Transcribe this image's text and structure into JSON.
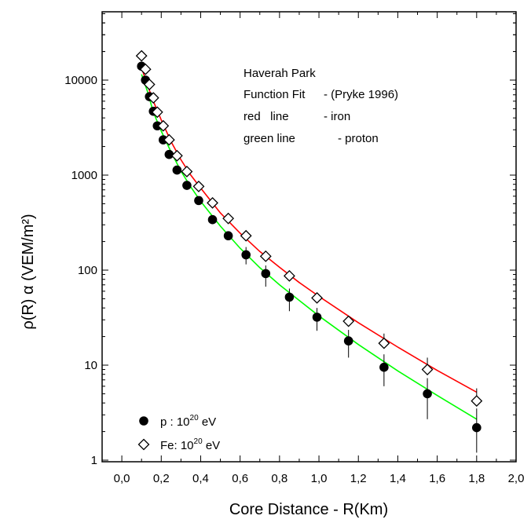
{
  "chart_data": {
    "type": "scatter",
    "xlabel": "Core Distance - R(Km)",
    "ylabel": "ρ(R) α (VEM/m²)",
    "xlim": [
      -0.1,
      2.0
    ],
    "ylim": [
      1,
      60000
    ],
    "y_scale": "log",
    "x_ticks": [
      "0,0",
      "0,2",
      "0,4",
      "0,6",
      "0,8",
      "1,0",
      "1,2",
      "1,4",
      "1,6",
      "1,8",
      "2,0"
    ],
    "y_ticks": [
      "1",
      "10",
      "100",
      "1000",
      "10000"
    ],
    "annotations": [
      "Haverah Park",
      "Function Fit",
      "- (Pryke 1996)",
      "red   line",
      "- iron",
      "green line",
      "- proton"
    ],
    "legend": {
      "placement": "bottom-left",
      "items": [
        {
          "marker": "filled-circle",
          "prefix": "p : 10",
          "sup": "20",
          "suffix": " eV"
        },
        {
          "marker": "open-diamond",
          "prefix": "Fe: 10",
          "sup": "20",
          "suffix": " eV"
        }
      ]
    },
    "series": [
      {
        "marker": "filled-circle",
        "color": "#000000",
        "x": [
          0.1,
          0.12,
          0.14,
          0.16,
          0.18,
          0.21,
          0.24,
          0.28,
          0.33,
          0.39,
          0.46,
          0.54,
          0.63,
          0.73,
          0.85,
          0.99,
          1.15,
          1.33,
          1.55,
          1.8
        ],
        "y": [
          14000,
          10000,
          6700,
          4700,
          3300,
          2350,
          1650,
          1130,
          780,
          540,
          340,
          230,
          145,
          92,
          52,
          32,
          18,
          9.5,
          5,
          2.2
        ],
        "err_up": [
          0,
          0,
          0,
          0,
          0,
          0,
          0,
          0,
          0,
          0,
          0,
          0,
          30,
          20,
          12,
          8,
          5.5,
          3.5,
          2.3,
          1.3
        ],
        "err_down": [
          0,
          0,
          0,
          0,
          0,
          0,
          0,
          0,
          0,
          0,
          0,
          0,
          30,
          25,
          15,
          9,
          6,
          3.5,
          2.3,
          1.0
        ]
      },
      {
        "marker": "open-diamond",
        "color": "#000000",
        "x": [
          0.1,
          0.12,
          0.14,
          0.16,
          0.18,
          0.21,
          0.24,
          0.28,
          0.33,
          0.39,
          0.46,
          0.54,
          0.63,
          0.73,
          0.85,
          0.99,
          1.15,
          1.33,
          1.55,
          1.8
        ],
        "y": [
          18000,
          13000,
          9000,
          6500,
          4600,
          3300,
          2350,
          1600,
          1090,
          760,
          510,
          350,
          230,
          140,
          87,
          51,
          29,
          17,
          9,
          4.2
        ],
        "err_up": [
          0,
          0,
          0,
          0,
          0,
          0,
          0,
          0,
          0,
          0,
          0,
          0,
          0,
          0,
          0,
          0,
          0,
          4.5,
          3.0,
          1.5
        ],
        "err_down": [
          0,
          0,
          0,
          0,
          0,
          0,
          0,
          0,
          0,
          0,
          0,
          0,
          0,
          0,
          0,
          0,
          0,
          0,
          0,
          0
        ]
      },
      {
        "type": "line",
        "color": "#ff0000",
        "x": [
          0.1,
          0.13,
          0.16,
          0.2,
          0.25,
          0.3,
          0.35,
          0.4,
          0.5,
          0.6,
          0.7,
          0.8,
          0.9,
          1.0,
          1.2,
          1.4,
          1.6,
          1.8
        ],
        "y": [
          13500,
          8900,
          6000,
          3800,
          2250,
          1450,
          1000,
          730,
          400,
          245,
          157,
          107,
          74,
          53,
          28,
          15.5,
          8.8,
          5.2
        ]
      },
      {
        "type": "line",
        "color": "#00ff00",
        "x": [
          0.1,
          0.13,
          0.16,
          0.2,
          0.25,
          0.3,
          0.35,
          0.4,
          0.5,
          0.6,
          0.7,
          0.8,
          0.9,
          1.0,
          1.2,
          1.4,
          1.6,
          1.8
        ],
        "y": [
          11500,
          7600,
          4600,
          2900,
          1750,
          1100,
          750,
          530,
          290,
          170,
          106,
          70,
          48,
          33,
          16.5,
          8.7,
          4.8,
          2.7
        ]
      }
    ]
  }
}
